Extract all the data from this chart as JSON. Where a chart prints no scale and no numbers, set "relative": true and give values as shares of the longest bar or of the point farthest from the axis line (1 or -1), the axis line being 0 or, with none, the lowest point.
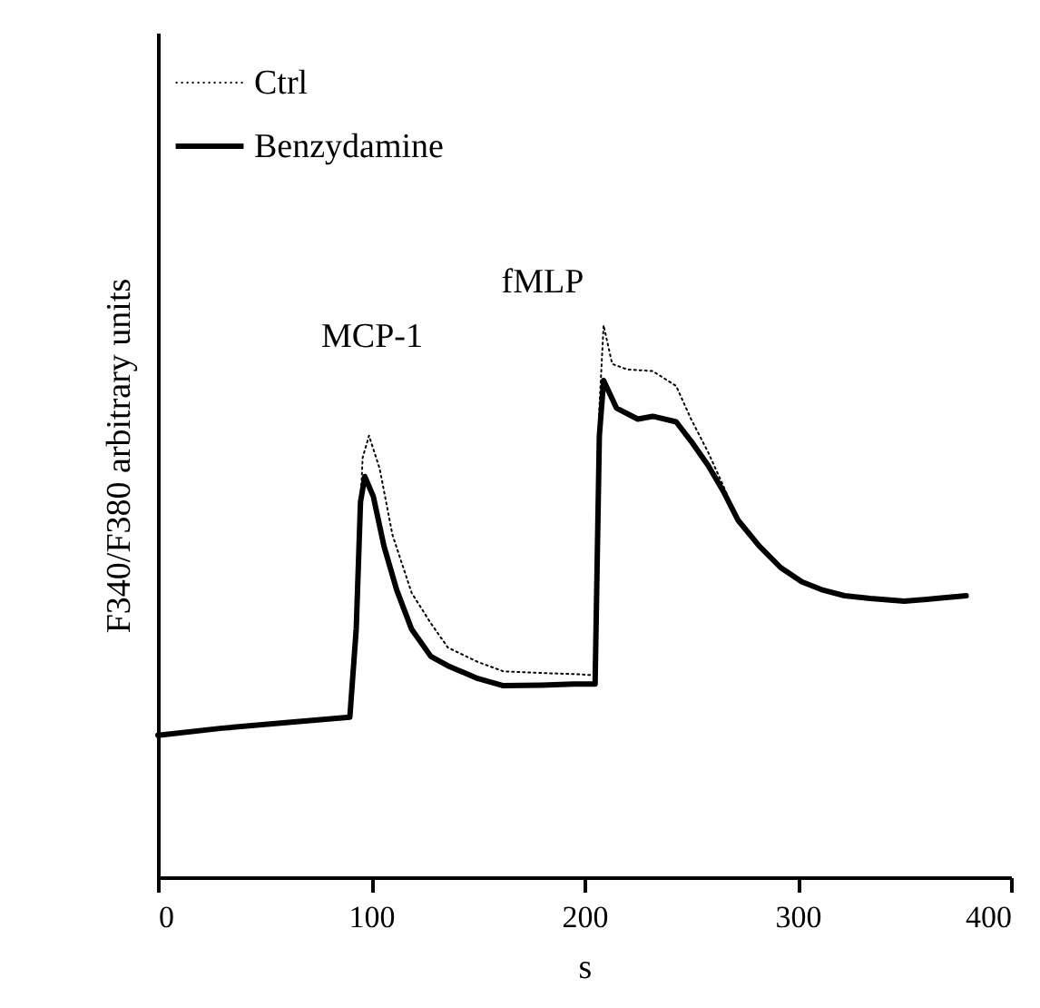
{
  "chart_data": {
    "type": "line",
    "xlabel": "s",
    "ylabel": "F340/F380 arbitrary units",
    "relative": true,
    "legend": "top left",
    "xlim": [
      0,
      400
    ],
    "xticks": [
      0,
      100,
      200,
      300,
      400
    ],
    "annotations": [
      "MCP-1",
      "fMLP"
    ],
    "series": [
      {
        "name": "Ctrl",
        "color": "#000000",
        "line_style": "dotted",
        "x": [
          0,
          30,
          60,
          90,
          93,
          96,
          99,
          104,
          110,
          119,
          128,
          136,
          150,
          162,
          180,
          195,
          205,
          207,
          209,
          213,
          220,
          232,
          243,
          250,
          258,
          265,
          272,
          282,
          292,
          302,
          312,
          322,
          334,
          350,
          365,
          379
        ],
        "values": [
          0.257,
          0.27,
          0.28,
          0.29,
          0.5,
          0.76,
          0.8,
          0.74,
          0.62,
          0.515,
          0.46,
          0.416,
          0.39,
          0.373,
          0.37,
          0.368,
          0.366,
          0.85,
          1.0,
          0.93,
          0.92,
          0.917,
          0.89,
          0.83,
          0.77,
          0.71,
          0.647,
          0.6,
          0.561,
          0.535,
          0.52,
          0.51,
          0.505,
          0.5,
          0.505,
          0.51
        ]
      },
      {
        "name": "Benzydamine",
        "color": "#000000",
        "line_style": "solid",
        "x": [
          0,
          30,
          60,
          90,
          93,
          95,
          97,
          101,
          106,
          112,
          119,
          128,
          136,
          150,
          162,
          180,
          195,
          205,
          207,
          209,
          215,
          225,
          232,
          243,
          250,
          258,
          265,
          272,
          282,
          292,
          302,
          312,
          322,
          334,
          350,
          365,
          379
        ],
        "values": [
          0.257,
          0.27,
          0.28,
          0.29,
          0.45,
          0.68,
          0.726,
          0.69,
          0.6,
          0.52,
          0.449,
          0.4,
          0.383,
          0.36,
          0.347,
          0.348,
          0.35,
          0.35,
          0.8,
          0.9,
          0.85,
          0.83,
          0.835,
          0.825,
          0.79,
          0.746,
          0.7,
          0.647,
          0.6,
          0.561,
          0.535,
          0.52,
          0.51,
          0.505,
          0.5,
          0.505,
          0.51
        ]
      }
    ]
  }
}
